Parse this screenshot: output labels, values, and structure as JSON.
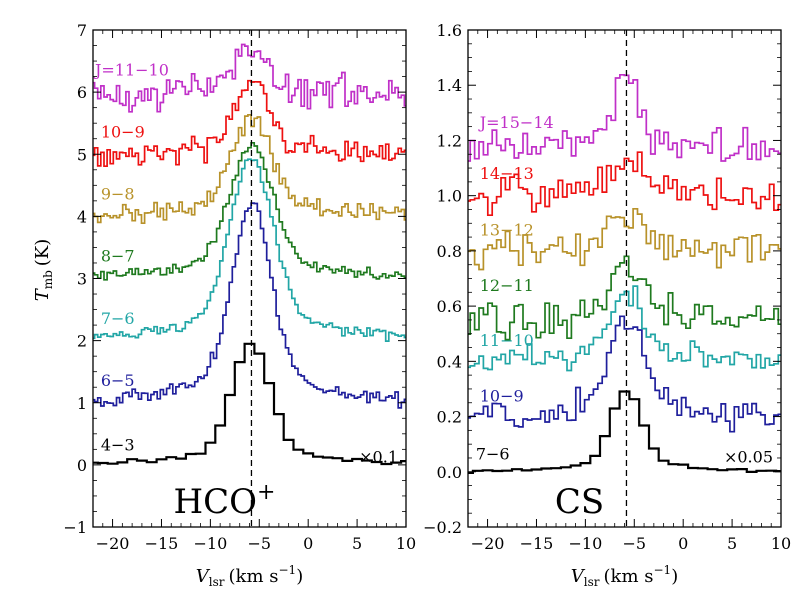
{
  "figure": {
    "shared_ylabel_main": "T",
    "shared_ylabel_sub": "mb",
    "shared_ylabel_unit": "(K)"
  },
  "chart_data": [
    {
      "type": "line",
      "title": "HCO+",
      "title_main": "HCO",
      "title_sup": "+",
      "xlabel_main": "V",
      "xlabel_sub": "lsr",
      "xlabel_unit": "(km s",
      "xlabel_exp": "−1",
      "xlabel_close": ")",
      "xlim": [
        -22,
        10
      ],
      "ylim": [
        -1,
        7
      ],
      "xticks": [
        -20,
        -15,
        -10,
        -5,
        0,
        5,
        10
      ],
      "xtick_labels": [
        "−20",
        "−15",
        "−10",
        "−5",
        "0",
        "5",
        "10"
      ],
      "yticks": [
        -1,
        0,
        1,
        2,
        3,
        4,
        5,
        6,
        7
      ],
      "ytick_labels": [
        "−1",
        "0",
        "1",
        "2",
        "3",
        "4",
        "5",
        "6",
        "7"
      ],
      "center_velocity": -5.8,
      "scale_note": "×0.1",
      "series": [
        {
          "name": "4−3",
          "label": "4−3",
          "color": "#000000",
          "baseline": 0.0,
          "peak": 1.75,
          "width": 1.9,
          "label_x": -21.2,
          "label_y": 0.23,
          "noise": 0.02,
          "step": 1.0
        },
        {
          "name": "6−5",
          "label": "6−5",
          "color": "#1f1f9c",
          "baseline": 1.0,
          "peak": 2.85,
          "width": 2.0,
          "label_x": -21.2,
          "label_y": 1.27,
          "noise": 0.06,
          "step": 0.32
        },
        {
          "name": "7−6",
          "label": "7−6",
          "color": "#22a6a6",
          "baseline": 2.0,
          "peak": 2.6,
          "width": 2.2,
          "label_x": -21.2,
          "label_y": 2.27,
          "noise": 0.04,
          "step": 0.32
        },
        {
          "name": "8−7",
          "label": "8−7",
          "color": "#1f7a1f",
          "baseline": 3.0,
          "peak": 1.9,
          "width": 2.2,
          "label_x": -21.2,
          "label_y": 3.27,
          "noise": 0.05,
          "step": 0.32
        },
        {
          "name": "9−8",
          "label": "9−8",
          "color": "#b8922a",
          "baseline": 4.0,
          "peak": 1.4,
          "width": 2.0,
          "label_x": -21.2,
          "label_y": 4.27,
          "noise": 0.08,
          "step": 0.32
        },
        {
          "name": "10−9",
          "label": "10−9",
          "color": "#ee1111",
          "baseline": 5.0,
          "peak": 1.05,
          "width": 1.7,
          "label_x": -21.2,
          "label_y": 5.27,
          "noise": 0.09,
          "step": 0.32
        },
        {
          "name": "J=11−10",
          "label": "J=11−10",
          "color": "#c030c8",
          "baseline": 6.0,
          "peak": 0.6,
          "width": 1.7,
          "label_x": -21.8,
          "label_y": 6.27,
          "noise": 0.13,
          "step": 0.32
        }
      ]
    },
    {
      "type": "line",
      "title": "CS",
      "title_main": "CS",
      "title_sup": "",
      "xlabel_main": "V",
      "xlabel_sub": "lsr",
      "xlabel_unit": "(km s",
      "xlabel_exp": "−1",
      "xlabel_close": ")",
      "xlim": [
        -22,
        10
      ],
      "ylim": [
        -0.2,
        1.6
      ],
      "xticks": [
        -20,
        -15,
        -10,
        -5,
        0,
        5,
        10
      ],
      "xtick_labels": [
        "−20",
        "−15",
        "−10",
        "−5",
        "0",
        "5",
        "10"
      ],
      "yticks": [
        -0.2,
        0.0,
        0.2,
        0.4,
        0.6,
        0.8,
        1.0,
        1.2,
        1.4,
        1.6
      ],
      "ytick_labels": [
        "−0.2",
        "0.0",
        "0.2",
        "0.4",
        "0.6",
        "0.8",
        "1.0",
        "1.2",
        "1.4",
        "1.6"
      ],
      "center_velocity": -5.8,
      "scale_note": "×0.05",
      "series": [
        {
          "name": "7−6",
          "label": "7−6",
          "color": "#000000",
          "baseline": 0.0,
          "peak": 0.26,
          "width": 1.6,
          "label_x": -21.2,
          "label_y": 0.045,
          "noise": 0.003,
          "step": 1.0
        },
        {
          "name": "10−9",
          "label": "10−9",
          "color": "#1f1f9c",
          "baseline": 0.2,
          "peak": 0.32,
          "width": 1.8,
          "label_x": -20.8,
          "label_y": 0.255,
          "noise": 0.025,
          "step": 0.45
        },
        {
          "name": "11−10",
          "label": "11−10",
          "color": "#22a6a6",
          "baseline": 0.4,
          "peak": 0.22,
          "width": 1.6,
          "label_x": -20.8,
          "label_y": 0.455,
          "noise": 0.025,
          "step": 0.45
        },
        {
          "name": "12−11",
          "label": "12−11",
          "color": "#1f7a1f",
          "baseline": 0.55,
          "peak": 0.2,
          "width": 1.6,
          "label_x": -20.8,
          "label_y": 0.655,
          "noise": 0.035,
          "step": 0.45
        },
        {
          "name": "13−12",
          "label": "13−12",
          "color": "#b8922a",
          "baseline": 0.8,
          "peak": 0.13,
          "width": 1.8,
          "label_x": -20.8,
          "label_y": 0.855,
          "noise": 0.03,
          "step": 0.45
        },
        {
          "name": "14−13",
          "label": "14−13",
          "color": "#ee1111",
          "baseline": 1.0,
          "peak": 0.12,
          "width": 1.8,
          "label_x": -20.8,
          "label_y": 1.06,
          "noise": 0.03,
          "step": 0.45
        },
        {
          "name": "J=15−14",
          "label": "J=15−14",
          "color": "#c030c8",
          "baseline": 1.17,
          "peak": 0.24,
          "width": 1.2,
          "label_x": -20.8,
          "label_y": 1.245,
          "noise": 0.035,
          "step": 0.45
        }
      ]
    }
  ]
}
